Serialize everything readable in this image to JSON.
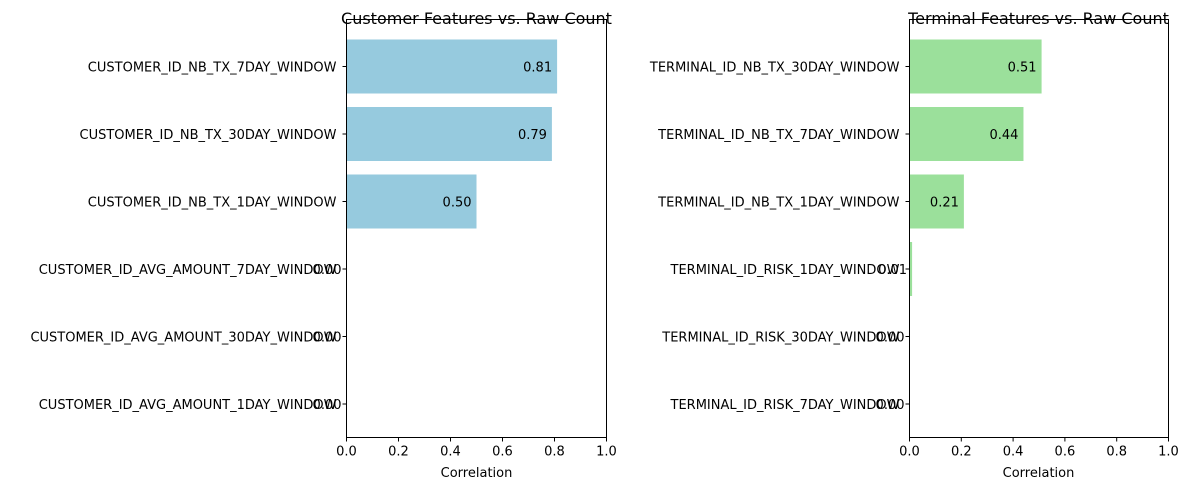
{
  "chart_data": [
    {
      "type": "bar",
      "orientation": "horizontal",
      "title": "Customer Features vs. Raw Count",
      "xlabel": "Correlation",
      "ylabel": "",
      "xlim": [
        0,
        1.0
      ],
      "xticks": [
        "0.0",
        "0.2",
        "0.4",
        "0.6",
        "0.8",
        "1.0"
      ],
      "grid": false,
      "bar_color": "#96cade",
      "categories": [
        "CUSTOMER_ID_NB_TX_7DAY_WINDOW",
        "CUSTOMER_ID_NB_TX_30DAY_WINDOW",
        "CUSTOMER_ID_NB_TX_1DAY_WINDOW",
        "CUSTOMER_ID_AVG_AMOUNT_7DAY_WINDOW",
        "CUSTOMER_ID_AVG_AMOUNT_30DAY_WINDOW",
        "CUSTOMER_ID_AVG_AMOUNT_1DAY_WINDOW"
      ],
      "values": [
        0.81,
        0.79,
        0.5,
        0.0,
        0.0,
        0.0
      ],
      "value_labels": [
        "0.81",
        "0.79",
        "0.50",
        "0.00",
        "0.00",
        "0.00"
      ]
    },
    {
      "type": "bar",
      "orientation": "horizontal",
      "title": "Terminal Features vs. Raw Count",
      "xlabel": "Correlation",
      "ylabel": "",
      "xlim": [
        0,
        1.0
      ],
      "xticks": [
        "0.0",
        "0.2",
        "0.4",
        "0.6",
        "0.8",
        "1.0"
      ],
      "grid": false,
      "bar_color": "#9be09b",
      "categories": [
        "TERMINAL_ID_NB_TX_30DAY_WINDOW",
        "TERMINAL_ID_NB_TX_7DAY_WINDOW",
        "TERMINAL_ID_NB_TX_1DAY_WINDOW",
        "TERMINAL_ID_RISK_1DAY_WINDOW",
        "TERMINAL_ID_RISK_30DAY_WINDOW",
        "TERMINAL_ID_RISK_7DAY_WINDOW"
      ],
      "values": [
        0.51,
        0.44,
        0.21,
        0.01,
        0.0,
        0.0
      ],
      "value_labels": [
        "0.51",
        "0.44",
        "0.21",
        "0.01",
        "0.00",
        "0.00"
      ]
    }
  ]
}
